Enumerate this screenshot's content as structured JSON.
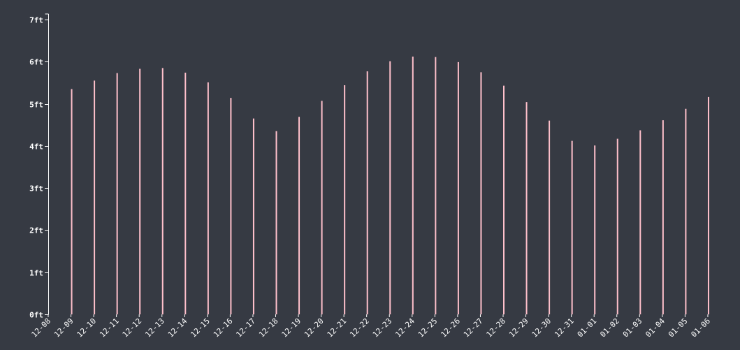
{
  "chart_data": {
    "type": "bar",
    "title": "",
    "xlabel": "",
    "ylabel": "",
    "ylim": [
      0,
      7
    ],
    "yticks": [
      0,
      1,
      2,
      3,
      4,
      5,
      6,
      7
    ],
    "ytick_labels": [
      "0ft",
      "1ft",
      "2ft",
      "3ft",
      "4ft",
      "5ft",
      "6ft",
      "7ft"
    ],
    "grid": false,
    "bar_color": "#ffc0cb",
    "background_color": "#363a43",
    "categories": [
      "12-08",
      "12-09",
      "12-10",
      "12-11",
      "12-12",
      "12-13",
      "12-14",
      "12-15",
      "12-16",
      "12-17",
      "12-18",
      "12-19",
      "12-20",
      "12-21",
      "12-22",
      "12-23",
      "12-24",
      "12-25",
      "12-26",
      "12-27",
      "12-28",
      "12-29",
      "12-30",
      "12-31",
      "01-01",
      "01-02",
      "01-03",
      "01-04",
      "01-05",
      "01-06"
    ],
    "values": [
      null,
      5.35,
      5.55,
      5.73,
      5.83,
      5.85,
      5.74,
      5.51,
      5.14,
      4.65,
      4.35,
      4.69,
      5.07,
      5.44,
      5.77,
      6.01,
      6.12,
      6.11,
      5.99,
      5.75,
      5.43,
      5.04,
      4.6,
      4.12,
      4.01,
      4.17,
      4.37,
      4.61,
      4.88,
      5.16
    ]
  }
}
